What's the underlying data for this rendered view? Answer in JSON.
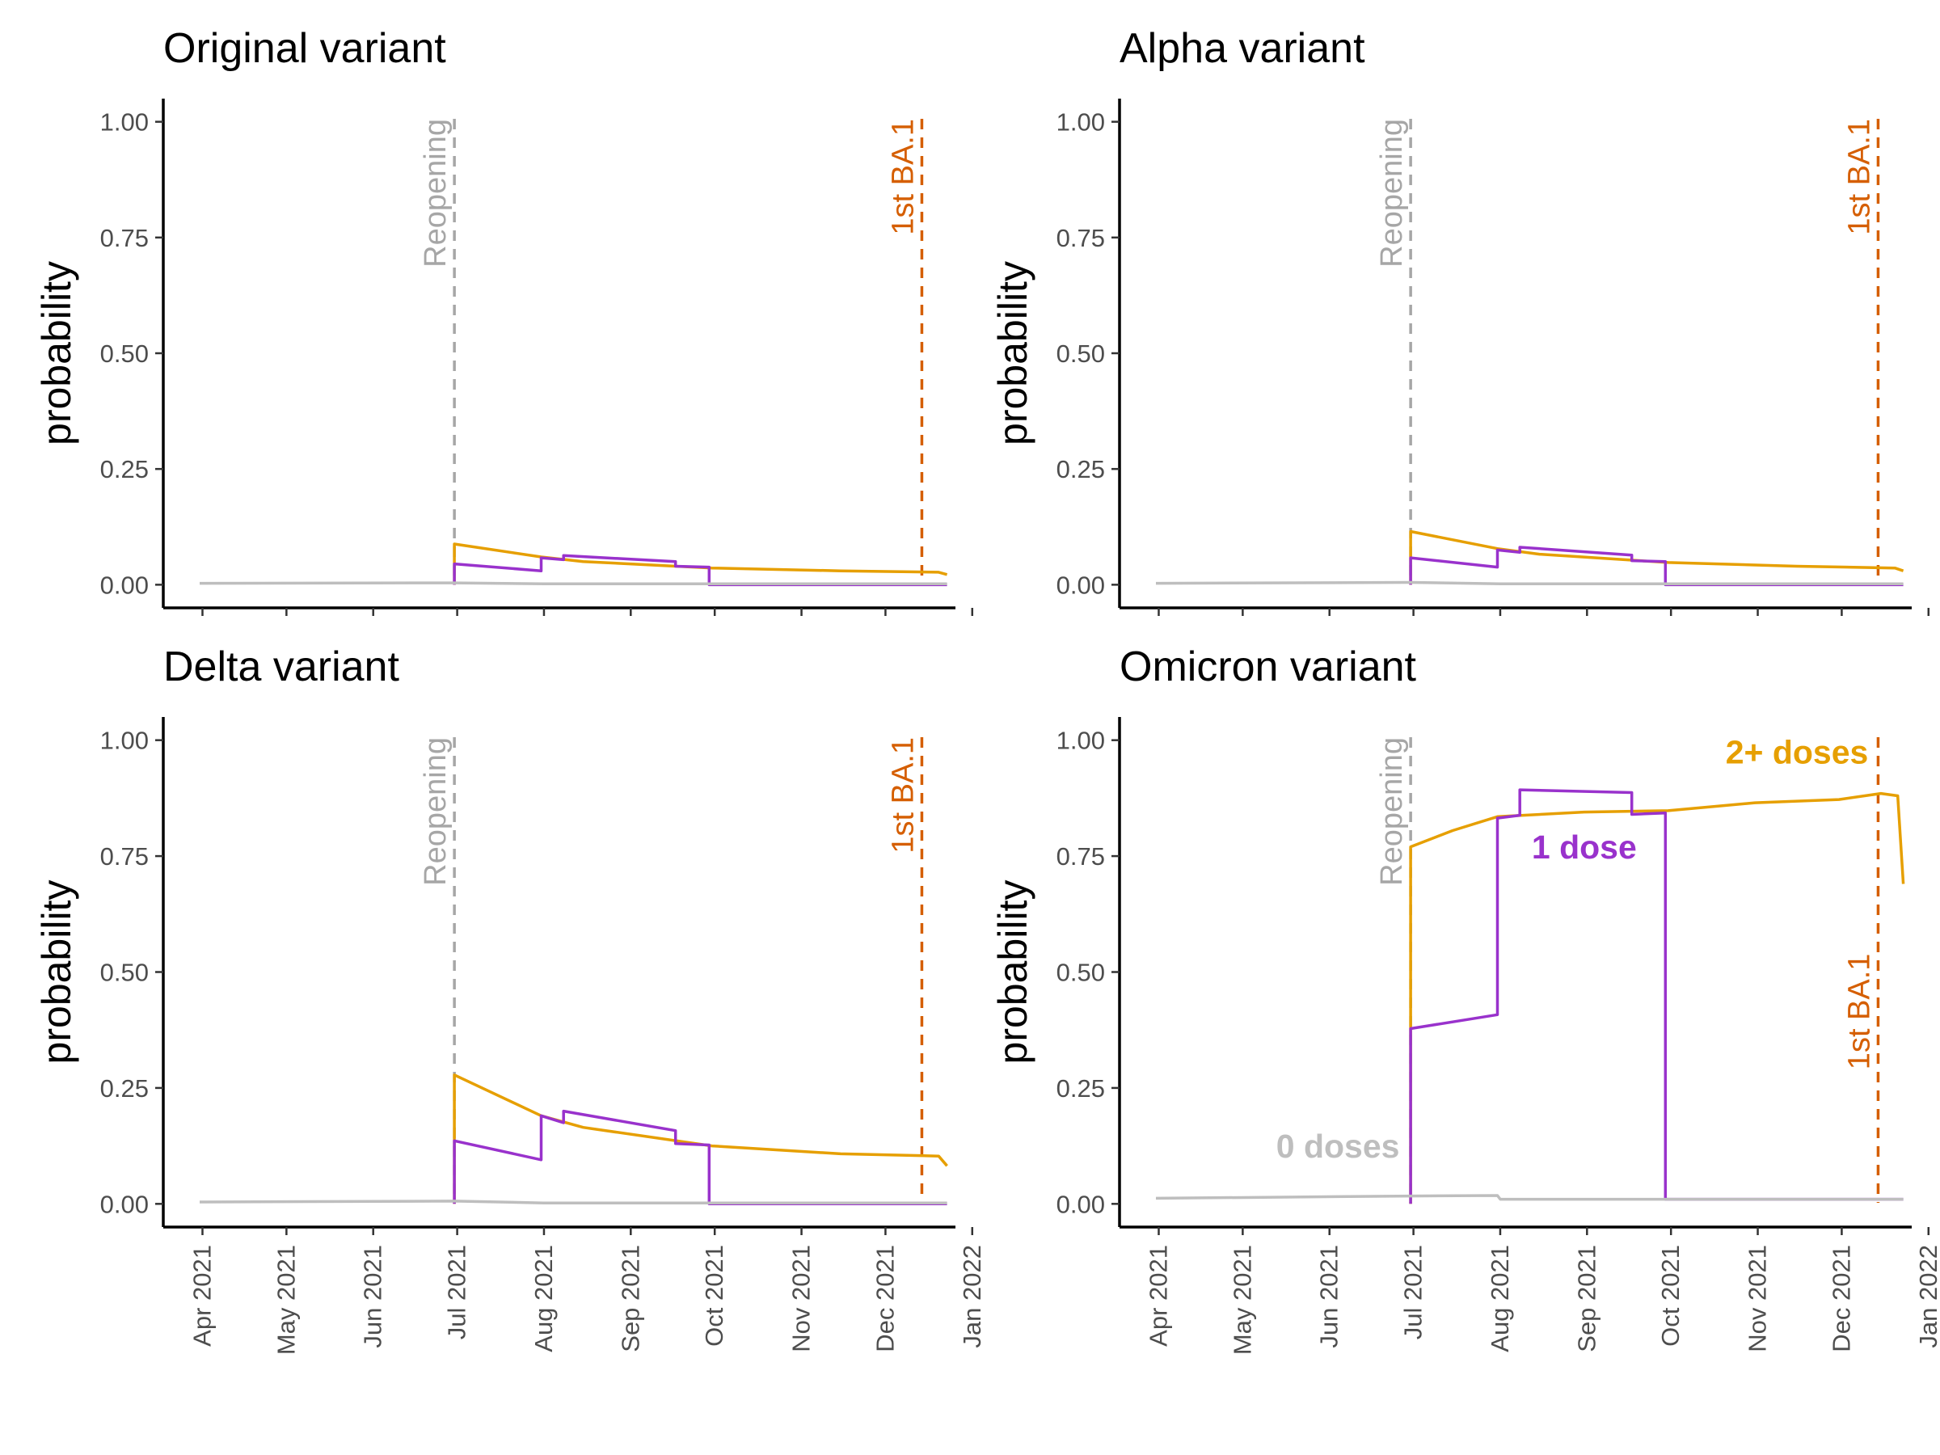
{
  "colors": {
    "two_plus_doses": "#E69F00",
    "one_dose": "#9932CC",
    "zero_doses": "#BEBEBE",
    "reopening_line": "#A6A6A6",
    "ba1_line": "#D55E00"
  },
  "chart_data": [
    {
      "type": "line",
      "title": "Original variant",
      "ylabel": "probability",
      "xlabel": "",
      "x_tick_labels": [
        "Apr 2021",
        "May 2021",
        "Jun 2021",
        "Jul 2021",
        "Aug 2021",
        "Sep 2021",
        "Oct 2021",
        "Nov 2021",
        "Dec 2021",
        "Jan 2022"
      ],
      "x_range": [
        "2021-03-18",
        "2021-12-26"
      ],
      "y_ticks": [
        "0.00",
        "0.25",
        "0.50",
        "0.75",
        "1.00"
      ],
      "ylim": [
        -0.05,
        1.05
      ],
      "grid": false,
      "reference_lines": [
        {
          "label": "Reopening",
          "x": "2021-06-30",
          "color": "#A6A6A6"
        },
        {
          "label": "1st BA.1",
          "x": "2021-12-14",
          "color": "#D55E00"
        }
      ],
      "series": [
        {
          "color": "#E69F00",
          "points": [
            [
              "2021-06-30",
              0.0
            ],
            [
              "2021-06-30",
              0.088
            ],
            [
              "2021-07-31",
              0.06
            ],
            [
              "2021-08-15",
              0.05
            ],
            [
              "2021-09-30",
              0.036
            ],
            [
              "2021-11-15",
              0.03
            ],
            [
              "2021-12-20",
              0.027
            ],
            [
              "2021-12-23",
              0.022
            ]
          ]
        },
        {
          "color": "#9932CC",
          "points": [
            [
              "2021-06-30",
              0.0
            ],
            [
              "2021-06-30",
              0.045
            ],
            [
              "2021-07-31",
              0.03
            ],
            [
              "2021-07-31",
              0.058
            ],
            [
              "2021-08-08",
              0.054
            ],
            [
              "2021-08-08",
              0.063
            ],
            [
              "2021-09-17",
              0.05
            ],
            [
              "2021-09-17",
              0.04
            ],
            [
              "2021-09-29",
              0.038
            ],
            [
              "2021-09-29",
              0.0
            ],
            [
              "2021-12-23",
              0.0
            ]
          ]
        },
        {
          "color": "#BEBEBE",
          "points": [
            [
              "2021-03-31",
              0.003
            ],
            [
              "2021-06-30",
              0.004
            ],
            [
              "2021-08-01",
              0.002
            ],
            [
              "2021-12-23",
              0.002
            ]
          ]
        }
      ]
    },
    {
      "type": "line",
      "title": "Alpha variant",
      "ylabel": "probability",
      "xlabel": "",
      "x_tick_labels": [
        "Apr 2021",
        "May 2021",
        "Jun 2021",
        "Jul 2021",
        "Aug 2021",
        "Sep 2021",
        "Oct 2021",
        "Nov 2021",
        "Dec 2021",
        "Jan 2022"
      ],
      "x_range": [
        "2021-03-18",
        "2021-12-26"
      ],
      "y_ticks": [
        "0.00",
        "0.25",
        "0.50",
        "0.75",
        "1.00"
      ],
      "ylim": [
        -0.05,
        1.05
      ],
      "grid": false,
      "reference_lines": [
        {
          "label": "Reopening",
          "x": "2021-06-30",
          "color": "#A6A6A6"
        },
        {
          "label": "1st BA.1",
          "x": "2021-12-14",
          "color": "#D55E00"
        }
      ],
      "series": [
        {
          "color": "#E69F00",
          "points": [
            [
              "2021-06-30",
              0.0
            ],
            [
              "2021-06-30",
              0.115
            ],
            [
              "2021-07-31",
              0.078
            ],
            [
              "2021-08-15",
              0.066
            ],
            [
              "2021-09-30",
              0.048
            ],
            [
              "2021-11-15",
              0.04
            ],
            [
              "2021-12-20",
              0.036
            ],
            [
              "2021-12-23",
              0.03
            ]
          ]
        },
        {
          "color": "#9932CC",
          "points": [
            [
              "2021-06-30",
              0.0
            ],
            [
              "2021-06-30",
              0.058
            ],
            [
              "2021-07-31",
              0.038
            ],
            [
              "2021-07-31",
              0.075
            ],
            [
              "2021-08-08",
              0.07
            ],
            [
              "2021-08-08",
              0.081
            ],
            [
              "2021-09-17",
              0.064
            ],
            [
              "2021-09-17",
              0.052
            ],
            [
              "2021-09-29",
              0.05
            ],
            [
              "2021-09-29",
              0.0
            ],
            [
              "2021-12-23",
              0.0
            ]
          ]
        },
        {
          "color": "#BEBEBE",
          "points": [
            [
              "2021-03-31",
              0.003
            ],
            [
              "2021-06-30",
              0.005
            ],
            [
              "2021-08-01",
              0.002
            ],
            [
              "2021-12-23",
              0.002
            ]
          ]
        }
      ]
    },
    {
      "type": "line",
      "title": "Delta variant",
      "ylabel": "probability",
      "xlabel": "",
      "x_tick_labels": [
        "Apr 2021",
        "May 2021",
        "Jun 2021",
        "Jul 2021",
        "Aug 2021",
        "Sep 2021",
        "Oct 2021",
        "Nov 2021",
        "Dec 2021",
        "Jan 2022"
      ],
      "x_range": [
        "2021-03-18",
        "2021-12-26"
      ],
      "y_ticks": [
        "0.00",
        "0.25",
        "0.50",
        "0.75",
        "1.00"
      ],
      "ylim": [
        -0.05,
        1.05
      ],
      "grid": false,
      "reference_lines": [
        {
          "label": "Reopening",
          "x": "2021-06-30",
          "color": "#A6A6A6"
        },
        {
          "label": "1st BA.1",
          "x": "2021-12-14",
          "color": "#D55E00"
        }
      ],
      "series": [
        {
          "color": "#E69F00",
          "points": [
            [
              "2021-06-30",
              0.0
            ],
            [
              "2021-06-30",
              0.278
            ],
            [
              "2021-07-31",
              0.19
            ],
            [
              "2021-08-15",
              0.165
            ],
            [
              "2021-09-30",
              0.125
            ],
            [
              "2021-11-15",
              0.108
            ],
            [
              "2021-12-20",
              0.103
            ],
            [
              "2021-12-23",
              0.082
            ]
          ]
        },
        {
          "color": "#9932CC",
          "points": [
            [
              "2021-06-30",
              0.0
            ],
            [
              "2021-06-30",
              0.136
            ],
            [
              "2021-07-31",
              0.095
            ],
            [
              "2021-07-31",
              0.19
            ],
            [
              "2021-08-08",
              0.175
            ],
            [
              "2021-08-08",
              0.2
            ],
            [
              "2021-09-17",
              0.158
            ],
            [
              "2021-09-17",
              0.13
            ],
            [
              "2021-09-29",
              0.127
            ],
            [
              "2021-09-29",
              0.0
            ],
            [
              "2021-12-23",
              0.0
            ]
          ]
        },
        {
          "color": "#BEBEBE",
          "points": [
            [
              "2021-03-31",
              0.004
            ],
            [
              "2021-06-30",
              0.006
            ],
            [
              "2021-08-01",
              0.002
            ],
            [
              "2021-12-23",
              0.002
            ]
          ]
        }
      ]
    },
    {
      "type": "line",
      "title": "Omicron variant",
      "ylabel": "probability",
      "xlabel": "",
      "x_tick_labels": [
        "Apr 2021",
        "May 2021",
        "Jun 2021",
        "Jul 2021",
        "Aug 2021",
        "Sep 2021",
        "Oct 2021",
        "Nov 2021",
        "Dec 2021",
        "Jan 2022"
      ],
      "x_range": [
        "2021-03-18",
        "2021-12-26"
      ],
      "y_ticks": [
        "0.00",
        "0.25",
        "0.50",
        "0.75",
        "1.00"
      ],
      "ylim": [
        -0.05,
        1.05
      ],
      "grid": false,
      "reference_lines": [
        {
          "label": "Reopening",
          "x": "2021-06-30",
          "color": "#A6A6A6"
        },
        {
          "label": "1st BA.1",
          "x": "2021-12-14",
          "color": "#D55E00"
        }
      ],
      "annotations": [
        {
          "text": "2+ doses",
          "color": "#E69F00",
          "x": "2021-11-15",
          "y": 0.95
        },
        {
          "text": "1 dose",
          "color": "#9932CC",
          "x": "2021-08-31",
          "y": 0.745
        },
        {
          "text": "0 doses",
          "color": "#BEBEBE",
          "x": "2021-06-04",
          "y": 0.1
        }
      ],
      "series": [
        {
          "name": "2+ doses",
          "color": "#E69F00",
          "points": [
            [
              "2021-06-30",
              0.0
            ],
            [
              "2021-06-30",
              0.77
            ],
            [
              "2021-07-15",
              0.805
            ],
            [
              "2021-07-31",
              0.835
            ],
            [
              "2021-08-31",
              0.845
            ],
            [
              "2021-09-30",
              0.848
            ],
            [
              "2021-10-31",
              0.865
            ],
            [
              "2021-11-30",
              0.872
            ],
            [
              "2021-12-15",
              0.885
            ],
            [
              "2021-12-21",
              0.88
            ],
            [
              "2021-12-23",
              0.69
            ]
          ]
        },
        {
          "name": "1 dose",
          "color": "#9932CC",
          "points": [
            [
              "2021-06-30",
              0.0
            ],
            [
              "2021-06-30",
              0.378
            ],
            [
              "2021-07-31",
              0.408
            ],
            [
              "2021-07-31",
              0.832
            ],
            [
              "2021-08-08",
              0.838
            ],
            [
              "2021-08-08",
              0.893
            ],
            [
              "2021-09-17",
              0.887
            ],
            [
              "2021-09-17",
              0.84
            ],
            [
              "2021-09-29",
              0.843
            ],
            [
              "2021-09-29",
              0.01
            ],
            [
              "2021-12-23",
              0.01
            ]
          ]
        },
        {
          "name": "0 doses",
          "color": "#BEBEBE",
          "points": [
            [
              "2021-03-31",
              0.012
            ],
            [
              "2021-06-30",
              0.017
            ],
            [
              "2021-07-31",
              0.018
            ],
            [
              "2021-08-01",
              0.01
            ],
            [
              "2021-12-23",
              0.01
            ]
          ]
        }
      ]
    }
  ]
}
